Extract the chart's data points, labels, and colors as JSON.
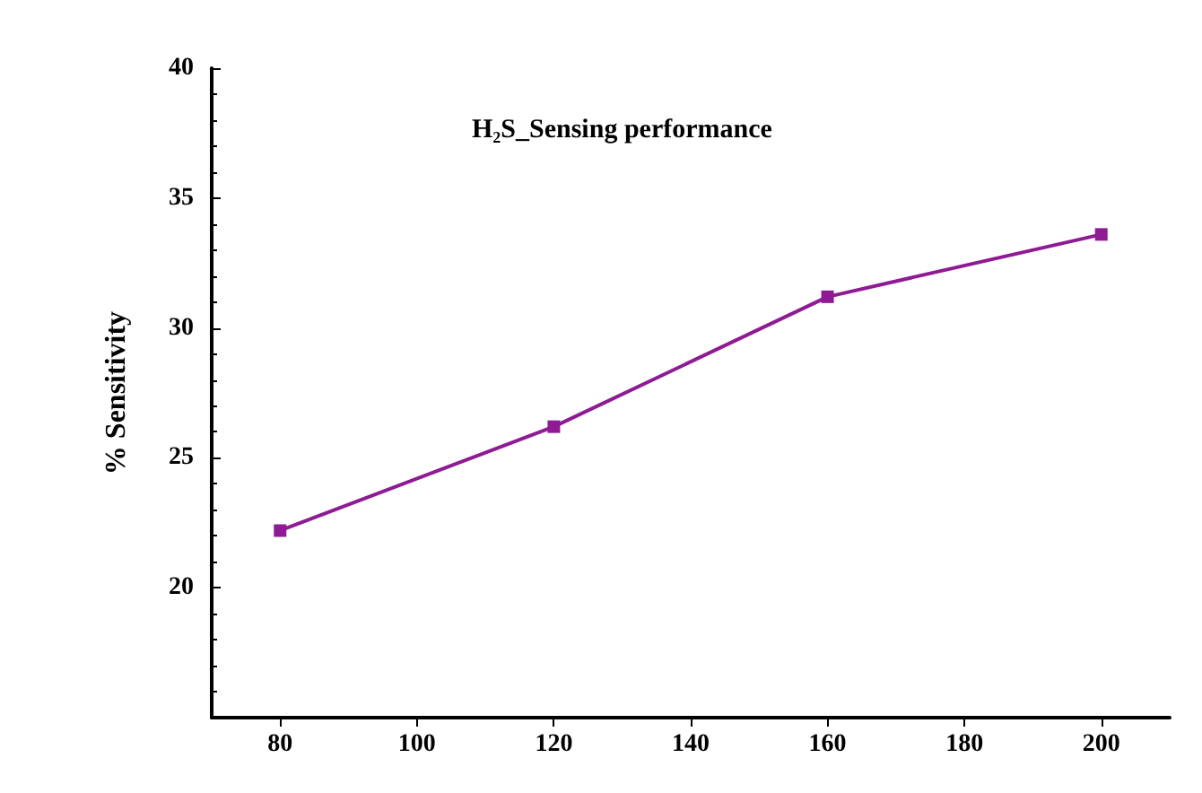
{
  "chart_data": {
    "type": "line",
    "title": "H₂S_Sensing performance",
    "ylabel": "% Sensitivity",
    "x": [
      80,
      120,
      160,
      200
    ],
    "series": [
      {
        "color": "#8e1a94",
        "values": [
          22.2,
          26.2,
          31.2,
          33.6
        ]
      }
    ],
    "xlim": [
      70,
      210
    ],
    "xticks": [
      80,
      100,
      120,
      140,
      160,
      180,
      200
    ],
    "ylim": [
      15,
      40
    ],
    "yticks": [
      20,
      25,
      30,
      35,
      40
    ],
    "grid": false,
    "marker": "square",
    "line_style": "solid"
  }
}
